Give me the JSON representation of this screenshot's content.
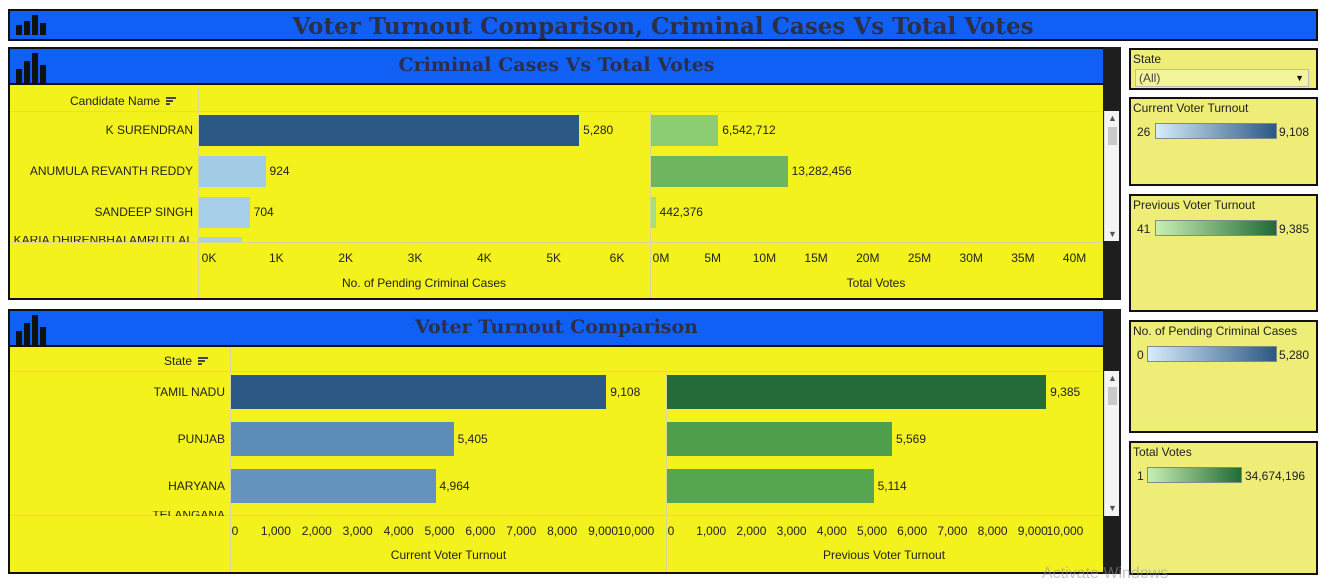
{
  "dashboard": {
    "title": "Voter Turnout Comparison, Criminal Cases Vs Total Votes",
    "watermark": "Activate Windows"
  },
  "criminal_panel": {
    "title": "Criminal Cases Vs Total Votes",
    "column_header": "Candidate Name",
    "rows": [
      {
        "name": "K SURENDRAN",
        "criminal_cases": 5280,
        "criminal_label": "5,280",
        "total_votes": 6542712,
        "votes_label": "6,542,712",
        "cases_color": "#2c5885",
        "votes_color": "#8dcd72"
      },
      {
        "name": "ANUMULA REVANTH REDDY",
        "criminal_cases": 924,
        "criminal_label": "924",
        "total_votes": 13282456,
        "votes_label": "13,282,456",
        "cases_color": "#a2cbe6",
        "votes_color": "#6db55f"
      },
      {
        "name": "SANDEEP SINGH",
        "criminal_cases": 704,
        "criminal_label": "704",
        "total_votes": 442376,
        "votes_label": "442,376",
        "cases_color": "#a7cfe8",
        "votes_color": "#a6dc86"
      },
      {
        "name": "KARIA DHIRENBHAI AMRUTLAL",
        "criminal_cases": 600,
        "criminal_label": "",
        "total_votes": 0,
        "votes_label": "",
        "cases_color": "#aad1ea",
        "votes_color": "#a6dc86"
      }
    ],
    "cases_axis": {
      "title": "No. of Pending Criminal Cases",
      "ticks": [
        "0K",
        "1K",
        "2K",
        "3K",
        "4K",
        "5K",
        "6K"
      ],
      "max": 6000
    },
    "votes_axis": {
      "title": "Total Votes",
      "ticks": [
        "0M",
        "5M",
        "10M",
        "15M",
        "20M",
        "25M",
        "30M",
        "35M",
        "40M"
      ],
      "max": 42000000
    }
  },
  "turnout_panel": {
    "title": "Voter Turnout Comparison",
    "column_header": "State",
    "rows": [
      {
        "name": "TAMIL NADU",
        "current": 9108,
        "current_label": "9,108",
        "previous": 9385,
        "previous_label": "9,385",
        "current_color": "#2c5885",
        "previous_color": "#246b3a"
      },
      {
        "name": "PUNJAB",
        "current": 5405,
        "current_label": "5,405",
        "previous": 5569,
        "previous_label": "5,569",
        "current_color": "#5b8db8",
        "previous_color": "#4f9e4b"
      },
      {
        "name": "HARYANA",
        "current": 4964,
        "current_label": "4,964",
        "previous": 5114,
        "previous_label": "5,114",
        "current_color": "#6494bd",
        "previous_color": "#55a64f"
      },
      {
        "name": "TELANGANA",
        "current": 0,
        "current_label": "",
        "previous": 0,
        "previous_label": "",
        "current_color": "#6494bd",
        "previous_color": "#55a64f"
      }
    ],
    "current_axis": {
      "title": "Current Voter Turnout",
      "ticks": [
        "0",
        "1,000",
        "2,000",
        "3,000",
        "4,000",
        "5,000",
        "6,000",
        "7,000",
        "8,000",
        "9,000",
        "10,000"
      ],
      "max": 10000
    },
    "previous_axis": {
      "title": "Previous Voter Turnout",
      "ticks": [
        "0",
        "1,000",
        "2,000",
        "3,000",
        "4,000",
        "5,000",
        "6,000",
        "7,000",
        "8,000",
        "9,000",
        "10,000"
      ],
      "max": 10000
    }
  },
  "filters": {
    "state": {
      "label": "State",
      "value": "(All)"
    },
    "current_turnout": {
      "label": "Current Voter Turnout",
      "min": "26",
      "max": "9,108",
      "from": "#d6ecfa",
      "to": "#2c5885"
    },
    "previous_turnout": {
      "label": "Previous Voter Turnout",
      "min": "41",
      "max": "9,385",
      "from": "#c9efb4",
      "to": "#1f6b36"
    },
    "criminal_cases": {
      "label": "No. of Pending Criminal Cases",
      "min": "0",
      "max": "5,280",
      "from": "#d6ecfa",
      "to": "#2c5885"
    },
    "total_votes": {
      "label": "Total Votes",
      "min": "1",
      "max": "34,674,196",
      "from": "#c9efb4",
      "to": "#1f6b36"
    }
  },
  "chart_data": [
    {
      "type": "bar",
      "title": "Criminal Cases Vs Total Votes",
      "categories": [
        "K SURENDRAN",
        "ANUMULA REVANTH REDDY",
        "SANDEEP SINGH",
        "KARIA DHIRENBHAI AMRUTLAL"
      ],
      "series": [
        {
          "name": "No. of Pending Criminal Cases",
          "values": [
            5280,
            924,
            704,
            600
          ]
        },
        {
          "name": "Total Votes",
          "values": [
            6542712,
            13282456,
            442376,
            null
          ]
        }
      ],
      "xlabel": "No. of Pending Criminal Cases / Total Votes",
      "ylabel": "Candidate Name",
      "xlim_cases": [
        0,
        6000
      ],
      "xlim_votes": [
        0,
        40000000
      ]
    },
    {
      "type": "bar",
      "title": "Voter Turnout Comparison",
      "categories": [
        "TAMIL NADU",
        "PUNJAB",
        "HARYANA",
        "TELANGANA"
      ],
      "series": [
        {
          "name": "Current Voter Turnout",
          "values": [
            9108,
            5405,
            4964,
            null
          ]
        },
        {
          "name": "Previous Voter Turnout",
          "values": [
            9385,
            5569,
            5114,
            null
          ]
        }
      ],
      "xlabel": "Current Voter Turnout / Previous Voter Turnout",
      "ylabel": "State",
      "xlim": [
        0,
        10000
      ]
    }
  ]
}
